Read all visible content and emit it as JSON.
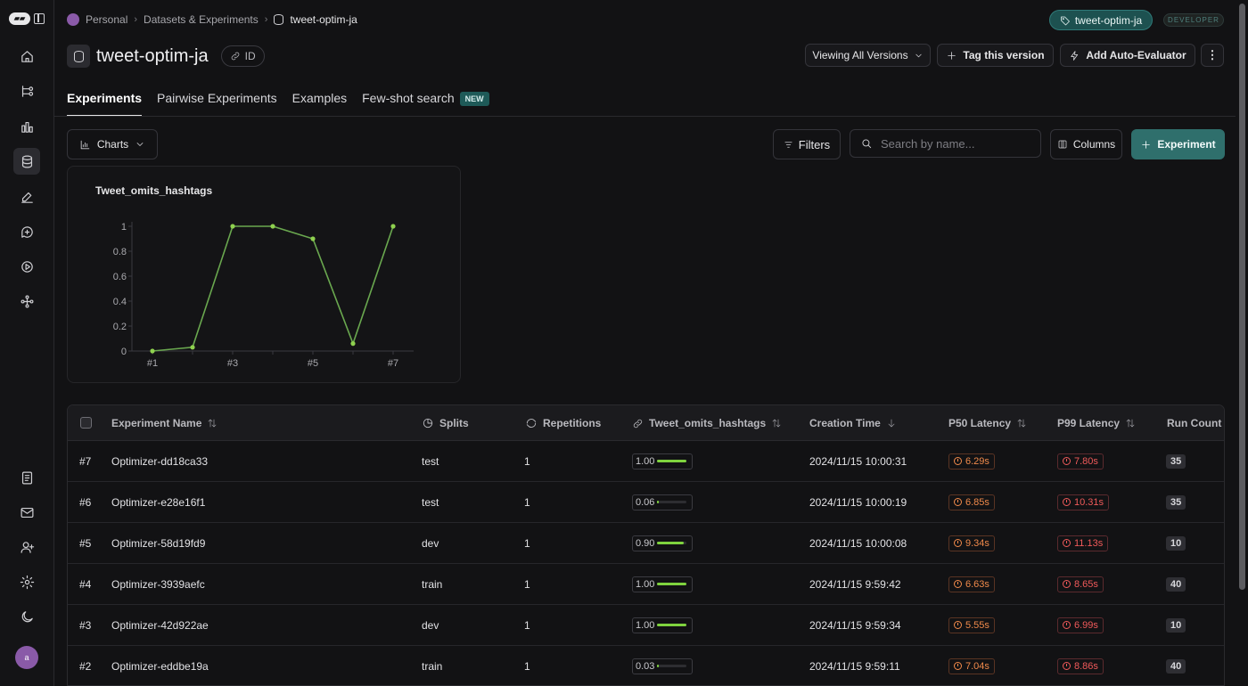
{
  "breadcrumb": {
    "workspace": "Personal",
    "section": "Datasets & Experiments",
    "current": "tweet-optim-ja"
  },
  "header": {
    "tag_pill": "tweet-optim-ja",
    "env_badge": "DEVELOPER",
    "title": "tweet-optim-ja",
    "id_label": "ID",
    "viewing_label": "Viewing All Versions",
    "tag_version_label": "Tag this version",
    "auto_eval_label": "Add Auto-Evaluator"
  },
  "tabs": [
    {
      "label": "Experiments",
      "active": true
    },
    {
      "label": "Pairwise Experiments",
      "active": false
    },
    {
      "label": "Examples",
      "active": false
    },
    {
      "label": "Few-shot search",
      "active": false,
      "badge": "NEW"
    }
  ],
  "toolbar": {
    "charts_label": "Charts",
    "filters_label": "Filters",
    "search_placeholder": "Search by name...",
    "columns_label": "Columns",
    "experiment_label": "Experiment"
  },
  "chart_data": {
    "type": "line",
    "title": "Tweet_omits_hashtags",
    "x": [
      "#1",
      "#2",
      "#3",
      "#4",
      "#5",
      "#6",
      "#7"
    ],
    "tick_labels_x": [
      "#1",
      "#3",
      "#5",
      "#7"
    ],
    "values": [
      0.0,
      0.03,
      1.0,
      1.0,
      0.9,
      0.06,
      1.0
    ],
    "yticks": [
      0,
      0.2,
      0.4,
      0.6,
      0.8,
      1
    ],
    "ylim": [
      0,
      1
    ],
    "color": "#6aa84f"
  },
  "table": {
    "columns": {
      "name": "Experiment Name",
      "splits": "Splits",
      "repetitions": "Repetitions",
      "score": "Tweet_omits_hashtags",
      "created": "Creation Time",
      "p50": "P50 Latency",
      "p99": "P99 Latency",
      "runs": "Run Count"
    },
    "rows": [
      {
        "num": "#7",
        "name": "Optimizer-dd18ca33",
        "split": "test",
        "reps": "1",
        "score": "1.00",
        "score_val": 1.0,
        "created": "2024/11/15 10:00:31",
        "p50": "6.29s",
        "p99": "7.80s",
        "runs": "35"
      },
      {
        "num": "#6",
        "name": "Optimizer-e28e16f1",
        "split": "test",
        "reps": "1",
        "score": "0.06",
        "score_val": 0.06,
        "created": "2024/11/15 10:00:19",
        "p50": "6.85s",
        "p99": "10.31s",
        "runs": "35"
      },
      {
        "num": "#5",
        "name": "Optimizer-58d19fd9",
        "split": "dev",
        "reps": "1",
        "score": "0.90",
        "score_val": 0.9,
        "created": "2024/11/15 10:00:08",
        "p50": "9.34s",
        "p99": "11.13s",
        "runs": "10"
      },
      {
        "num": "#4",
        "name": "Optimizer-3939aefc",
        "split": "train",
        "reps": "1",
        "score": "1.00",
        "score_val": 1.0,
        "created": "2024/11/15 9:59:42",
        "p50": "6.63s",
        "p99": "8.65s",
        "runs": "40"
      },
      {
        "num": "#3",
        "name": "Optimizer-42d922ae",
        "split": "dev",
        "reps": "1",
        "score": "1.00",
        "score_val": 1.0,
        "created": "2024/11/15 9:59:34",
        "p50": "5.55s",
        "p99": "6.99s",
        "runs": "10"
      },
      {
        "num": "#2",
        "name": "Optimizer-eddbe19a",
        "split": "train",
        "reps": "1",
        "score": "0.03",
        "score_val": 0.03,
        "created": "2024/11/15 9:59:11",
        "p50": "7.04s",
        "p99": "8.86s",
        "runs": "40"
      }
    ]
  },
  "user": {
    "avatar_initial": "a"
  }
}
